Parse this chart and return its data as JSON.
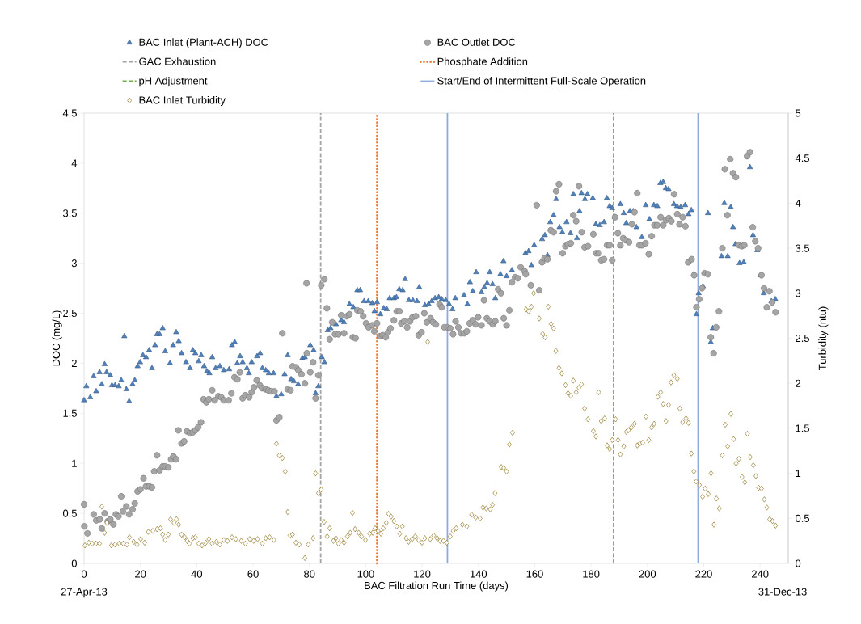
{
  "chart_data": {
    "type": "scatter",
    "xlabel": "BAC Filtration Run Time (days)",
    "ylabel": "DOC (mg/L)",
    "y2label": "Turbidity (ntu)",
    "xlim": [
      0,
      250
    ],
    "xticks": [
      0,
      20,
      40,
      60,
      80,
      100,
      120,
      140,
      160,
      180,
      200,
      220,
      240
    ],
    "ylim": [
      0,
      4.5
    ],
    "yticks": [
      0,
      0.5,
      1,
      1.5,
      2,
      2.5,
      3,
      3.5,
      4,
      4.5
    ],
    "y2lim": [
      0,
      5
    ],
    "y2ticks": [
      0,
      0.5,
      1,
      1.5,
      2,
      2.5,
      3,
      3.5,
      4,
      4.5,
      5
    ],
    "legend": "top",
    "annotations": [
      "27-Apr-13",
      "31-Dec-13"
    ],
    "ref_lines": [
      {
        "axis": "x",
        "value": 84,
        "label": "GAC Exhaustion",
        "color": "#a5a5a5",
        "line_style": "dashed"
      },
      {
        "axis": "x",
        "value": 104,
        "label": "Phosphate Addition",
        "color": "#ed7d31",
        "line_style": "dotted"
      },
      {
        "axis": "x",
        "value": 188,
        "label": "pH Adjustment",
        "color": "#70ad47",
        "line_style": "dashed"
      },
      {
        "axis": "x",
        "value": 129,
        "label": "Start/End of Intermittent Full-Scale Operation",
        "color": "#8faadc",
        "line_style": "solid"
      },
      {
        "axis": "x",
        "value": 218,
        "color": "#8faadc",
        "line_style": "solid"
      }
    ],
    "series": [
      {
        "name": "BAC Inlet (Plant-ACH) DOC",
        "color": "#4f81bd",
        "marker": "triangle",
        "x": [
          0,
          0.8,
          2.2,
          3.4,
          4.3,
          5.5,
          6.3,
          7.3,
          8,
          9.3,
          9.9,
          11,
          12.3,
          13.2,
          14.3,
          15,
          16,
          17.2,
          18,
          19,
          19.9,
          20.9,
          22,
          23.1,
          24.1,
          25.2,
          25.9,
          26.8,
          27.9,
          28.8,
          30.5,
          31.6,
          32.7,
          33.6,
          34.6,
          36.2,
          37.6,
          38.6,
          39.5,
          40.7,
          41.6,
          42.6,
          43.6,
          44.5,
          45.5,
          46.7,
          48.2,
          49.6,
          51.5,
          52.5,
          53.5,
          54.4,
          55.4,
          56.3,
          57.8,
          58.5,
          59.5,
          61.4,
          62.5,
          63.3,
          64.5,
          65.6,
          67.3,
          68.3,
          70,
          71.2,
          72.3,
          73.5,
          74.5,
          76,
          77.5,
          78.4,
          80.3,
          81.5,
          82.2,
          83.2,
          84.4,
          85.3,
          86.5,
          87.5,
          89.4,
          91.3,
          92.3,
          94.2,
          95.6,
          97,
          98,
          99.4,
          100.9,
          102.3,
          103.1,
          104,
          105.2,
          106.4,
          107.5,
          108.5,
          110,
          110.9,
          111.9,
          113.1,
          114,
          115.3,
          116.7,
          118.2,
          119,
          121,
          122.3,
          123.4,
          124.6,
          125.9,
          127,
          128.4,
          129.6,
          130.8,
          131.8,
          134.9,
          136.1,
          137,
          138,
          139.2,
          141.1,
          142.1,
          143.1,
          144,
          145,
          146,
          147.8,
          148.9,
          150,
          151.9,
          156.7,
          157.8,
          158.8,
          159.8,
          162.6,
          163.6,
          164.5,
          165.5,
          166.7,
          167.6,
          168.8,
          169.8,
          171.3,
          172.7,
          173.7,
          175,
          175.9,
          176.6,
          177.8,
          178.7,
          180.6,
          181.7,
          183.1,
          184.6,
          185.6,
          186.6,
          187.5,
          188.5,
          190.4,
          191.6,
          192.5,
          193.8,
          195,
          196.1,
          198,
          199.4,
          200.7,
          202.3,
          203.5,
          204.6,
          205.6,
          206.5,
          207.5,
          209.4,
          210.5,
          211.8,
          213.4,
          214.6,
          215.6,
          216.5,
          217.4,
          218.2,
          219.7,
          221.5,
          222.5,
          223.2,
          226.3,
          227.3,
          228.5,
          229.6,
          230.4,
          231.3,
          232.7,
          234.2,
          236.4,
          237.5,
          239,
          240.2,
          241.3,
          244,
          245.4
        ],
        "values": [
          1.63,
          1.77,
          1.66,
          1.87,
          1.72,
          1.91,
          1.79,
          1.99,
          1.91,
          1.88,
          1.78,
          1.78,
          1.77,
          1.83,
          2.27,
          1.74,
          1.62,
          1.79,
          1.83,
          1.97,
          2.01,
          2.08,
          2.06,
          2.13,
          1.95,
          2.18,
          2.29,
          2.29,
          2.35,
          2.12,
          2.0,
          2.18,
          2.31,
          2.22,
          2.1,
          2.01,
          1.95,
          2.13,
          2.1,
          2.02,
          2.08,
          1.97,
          1.92,
          1.9,
          2.06,
          1.95,
          1.97,
          1.93,
          1.94,
          2.18,
          2.21,
          2.0,
          2.07,
          2.01,
          1.95,
          1.9,
          2.01,
          2.07,
          2.1,
          1.95,
          1.93,
          1.9,
          1.9,
          1.67,
          1.69,
          1.89,
          2.08,
          1.84,
          1.82,
          1.79,
          2.05,
          2.06,
          2.18,
          2.13,
          1.7,
          1.77,
          2.06,
          2.01,
          2.33,
          2.35,
          2.39,
          2.43,
          2.41,
          2.59,
          2.56,
          2.73,
          2.73,
          2.62,
          2.62,
          2.6,
          2.52,
          2.61,
          2.49,
          2.55,
          2.54,
          2.65,
          2.65,
          2.66,
          2.74,
          2.73,
          2.84,
          2.63,
          2.63,
          2.62,
          2.76,
          2.58,
          2.59,
          2.62,
          2.65,
          2.66,
          2.64,
          2.63,
          2.59,
          2.54,
          2.65,
          2.68,
          2.59,
          2.81,
          2.72,
          2.91,
          2.71,
          2.76,
          2.8,
          2.91,
          2.79,
          2.65,
          2.89,
          3.02,
          2.87,
          2.93,
          3.1,
          3.12,
          2.98,
          3.18,
          3.24,
          3.28,
          3.08,
          3.41,
          3.48,
          3.64,
          3.36,
          3.31,
          3.41,
          3.3,
          3.69,
          3.25,
          3.52,
          3.7,
          3.64,
          3.69,
          3.65,
          3.39,
          3.38,
          3.41,
          3.65,
          3.57,
          3.55,
          3.46,
          3.59,
          3.5,
          3.4,
          3.52,
          3.52,
          3.36,
          3.26,
          3.58,
          3.44,
          3.58,
          3.57,
          3.8,
          3.81,
          3.75,
          3.74,
          3.59,
          3.57,
          3.56,
          3.58,
          3.49,
          3.53,
          2.89,
          2.49,
          2.7,
          2.77,
          3.5,
          2.21,
          2.35,
          3.07,
          3.6,
          3.07,
          3.56,
          3.36,
          3.19,
          3.0,
          3.01,
          3.96,
          3.28,
          3.13,
          2.88,
          2.7,
          2.62,
          2.64
        ]
      },
      {
        "name": "BAC Outlet DOC",
        "color": "#a5a5a5",
        "marker": "circle",
        "x": [
          0,
          0.1,
          1.2,
          3.4,
          4.3,
          5.6,
          6.3,
          7.3,
          8.4,
          9.3,
          10.4,
          11.3,
          12.2,
          13.2,
          13.8,
          15,
          16,
          17.2,
          18,
          19,
          20,
          21.1,
          22,
          23.1,
          24.1,
          24.9,
          25.9,
          26.8,
          27.9,
          28.8,
          29.9,
          30.9,
          31.7,
          32.7,
          33.5,
          34.6,
          35.5,
          36.5,
          37.6,
          38.6,
          39.5,
          40.5,
          41.5,
          42.4,
          43.4,
          44.3,
          45.5,
          46.4,
          47.7,
          48.7,
          49.6,
          51.3,
          52.3,
          53.4,
          54.4,
          55.3,
          56.3,
          57.3,
          58.6,
          59.5,
          60.3,
          61.3,
          62.4,
          63.3,
          64.5,
          65.4,
          66.4,
          67.6,
          68.3,
          69.3,
          70.4,
          72.3,
          73.3,
          74,
          75.2,
          76.1,
          77.2,
          78.4,
          79,
          79.1,
          80.3,
          81.3,
          82.2,
          83.2,
          84.2,
          85.3,
          86.2,
          87.2,
          88.1,
          89.1,
          90.3,
          91.3,
          92.3,
          93.3,
          94.2,
          95.4,
          96.4,
          97,
          98.2,
          99.1,
          100.1,
          101,
          102.3,
          103,
          104,
          105,
          106,
          107.1,
          107.9,
          108.8,
          110,
          111,
          112,
          112.6,
          113.7,
          114.7,
          115.7,
          116.6,
          117.8,
          118.8,
          119.8,
          120.8,
          121.7,
          123,
          123.9,
          124.9,
          126.2,
          127,
          127.9,
          129.1,
          130,
          131,
          131.9,
          132.9,
          133.8,
          135,
          135.9,
          136.9,
          138,
          139,
          139.9,
          141.1,
          142,
          143,
          144,
          145.1,
          146,
          147,
          148,
          149,
          150,
          151,
          151.9,
          153,
          154,
          155,
          156.4,
          156.8,
          158.6,
          160.7,
          161.6,
          162.6,
          163.5,
          164.5,
          165.7,
          166.7,
          167.6,
          168.6,
          169.9,
          170.9,
          171.8,
          172.8,
          173.7,
          174.7,
          175.7,
          176.7,
          177.7,
          178.9,
          180.8,
          181.8,
          182.7,
          183.6,
          184.6,
          185.7,
          186.6,
          187.5,
          188.5,
          189.5,
          190.4,
          191.4,
          192.3,
          193.5,
          194.5,
          195.4,
          196.4,
          197.2,
          198.1,
          199.3,
          200.5,
          201.5,
          202.5,
          203.5,
          204.7,
          205.6,
          206.6,
          207.6,
          208.5,
          209.5,
          210.6,
          211.4,
          212.5,
          213.5,
          214.5,
          215.7,
          216.6,
          217.4,
          218.4,
          219.4,
          220.3,
          221.5,
          222.5,
          223.5,
          224.4,
          225.4,
          226.6,
          227.5,
          228.4,
          229.4,
          230.4,
          231.4,
          232.5,
          233.5,
          234.4,
          235.4,
          236.4,
          237.4,
          238.3,
          239.3,
          240.5,
          241.4,
          242.4,
          243.3,
          244.3,
          245.5
        ],
        "values": [
          0.59,
          0.37,
          0.3,
          0.49,
          0.43,
          0.44,
          0.35,
          0.5,
          0.42,
          0.44,
          0.39,
          0.49,
          0.47,
          0.67,
          0.52,
          0.57,
          0.49,
          0.54,
          0.6,
          0.72,
          0.74,
          0.85,
          0.77,
          0.77,
          0.76,
          0.92,
          1.08,
          0.93,
          0.97,
          0.97,
          0.96,
          1.04,
          1.07,
          1.04,
          1.33,
          1.2,
          1.22,
          1.32,
          1.3,
          1.31,
          1.33,
          1.36,
          1.41,
          1.64,
          1.61,
          1.64,
          1.73,
          1.63,
          1.67,
          1.66,
          1.63,
          1.63,
          1.7,
          1.86,
          1.84,
          1.91,
          1.65,
          1.68,
          1.66,
          1.71,
          1.76,
          1.83,
          1.78,
          1.75,
          1.74,
          1.73,
          1.72,
          1.72,
          1.43,
          1.46,
          2.3,
          1.74,
          1.73,
          1.97,
          1.96,
          1.93,
          1.89,
          1.8,
          2.8,
          2.1,
          1.91,
          2.01,
          1.65,
          1.88,
          2.78,
          2.84,
          2.55,
          2.24,
          2.41,
          2.29,
          2.29,
          2.48,
          2.3,
          2.47,
          2.49,
          2.26,
          2.25,
          2.53,
          2.52,
          2.47,
          2.4,
          2.36,
          2.38,
          2.32,
          2.4,
          2.27,
          2.28,
          2.26,
          2.31,
          2.35,
          2.43,
          2.52,
          2.52,
          2.4,
          2.42,
          2.36,
          2.42,
          2.46,
          2.47,
          2.28,
          2.31,
          2.5,
          2.41,
          2.45,
          2.41,
          2.39,
          2.59,
          2.56,
          2.36,
          2.36,
          2.35,
          2.29,
          2.42,
          2.36,
          2.3,
          2.3,
          2.32,
          2.4,
          2.43,
          2.39,
          2.46,
          2.38,
          2.63,
          2.45,
          2.42,
          2.39,
          2.42,
          2.74,
          2.7,
          2.45,
          2.38,
          2.53,
          2.81,
          2.86,
          2.85,
          2.96,
          2.92,
          2.89,
          2.78,
          3.58,
          2.73,
          3.01,
          3.05,
          3.04,
          3.33,
          3.31,
          3.72,
          3.79,
          3.1,
          3.17,
          3.19,
          3.2,
          3.48,
          3.42,
          3.77,
          3.31,
          3.16,
          3.17,
          3.29,
          3.1,
          3.1,
          3.03,
          3.04,
          3.18,
          3.18,
          3.03,
          3.46,
          3.3,
          3.18,
          3.25,
          3.23,
          3.21,
          3.39,
          3.51,
          3.7,
          3.18,
          3.18,
          3.2,
          3.09,
          3.27,
          3.38,
          3.38,
          3.46,
          3.38,
          3.43,
          3.45,
          3.42,
          3.69,
          3.49,
          3.39,
          3.46,
          3.37,
          3.01,
          3.04,
          2.88,
          2.56,
          2.64,
          2.75,
          2.9,
          2.89,
          2.26,
          2.1,
          2.36,
          2.52,
          3.15,
          3.94,
          3.48,
          4.04,
          3.9,
          3.86,
          3.18,
          3.17,
          3.18,
          4.07,
          4.11,
          3.36,
          3.22,
          3.15,
          2.88,
          2.75,
          2.56,
          2.72,
          2.61,
          2.51
        ]
      },
      {
        "name": "BAC Inlet Turbidity",
        "color": "#7f6000",
        "marker": "diamond",
        "axis": "y2",
        "x": [
          0.3,
          1.7,
          2.9,
          4.2,
          5.5,
          6.3,
          7.3,
          8.1,
          9.7,
          11,
          12.5,
          13.9,
          15.2,
          16.1,
          17.6,
          18.8,
          20.1,
          21.5,
          22.8,
          24.4,
          25.9,
          27.1,
          27.9,
          28.8,
          29.9,
          30.7,
          31.9,
          32.8,
          33.6,
          34.6,
          35.7,
          36.6,
          37.4,
          38.6,
          39.5,
          40.7,
          41.9,
          43.2,
          44.3,
          45.5,
          47,
          48.2,
          49.6,
          50.9,
          52.5,
          53.9,
          55.8,
          57.3,
          58.8,
          60.2,
          61.6,
          63.3,
          64.5,
          65.9,
          67.4,
          68.3,
          69.3,
          70.4,
          71.4,
          72.3,
          73.1,
          74,
          75.2,
          76.4,
          78.4,
          79.6,
          81.3,
          82.2,
          83.2,
          84.2,
          85.2,
          86.3,
          87.2,
          88.5,
          89.4,
          90.3,
          91.3,
          92.3,
          93.5,
          94.5,
          95.3,
          96.2,
          97.5,
          98.5,
          99.9,
          101.4,
          102.5,
          103.3,
          104.4,
          105.4,
          106.2,
          107.3,
          108.1,
          109,
          110,
          111,
          112.1,
          113,
          114.3,
          115.2,
          116.5,
          117.6,
          118.8,
          120,
          121,
          122,
          122.9,
          124.1,
          125.3,
          126.4,
          127.6,
          128.8,
          130,
          131,
          132.1,
          134.3,
          135.9,
          137.6,
          139,
          140.6,
          141.6,
          142.8,
          144.2,
          145,
          145.9,
          148.1,
          149,
          150,
          151,
          152.1,
          156.9,
          157.8,
          158.8,
          159.6,
          161.6,
          162.8,
          163.7,
          164.8,
          165.8,
          166.7,
          167.5,
          168.6,
          169.6,
          170.9,
          171.8,
          172.8,
          173.7,
          174.7,
          175.7,
          176.6,
          177.7,
          178.9,
          180.8,
          181.7,
          182.7,
          183.6,
          184.8,
          185.7,
          186.6,
          187.5,
          188.7,
          189.6,
          190.4,
          191.6,
          192.5,
          193.3,
          194.3,
          195.4,
          196.4,
          197.3,
          198.3,
          199.5,
          200.5,
          201.5,
          202.4,
          203.7,
          204.7,
          205.6,
          206.6,
          207.5,
          208.4,
          209.4,
          210.6,
          211.5,
          212.5,
          213.7,
          214.6,
          215.6,
          216.5,
          217.3,
          218.5,
          219.6,
          220.5,
          221.6,
          222.6,
          223.6,
          224.5,
          225.5,
          226.6,
          227.6,
          228.5,
          229.6,
          230.6,
          231.5,
          232.5,
          233.6,
          234.6,
          235.5,
          236.5,
          237.6,
          238.5,
          239.5,
          240.5,
          241.5,
          242.4,
          243.4,
          244.4,
          245.5
        ],
        "values": [
          0.2,
          0.23,
          0.22,
          0.22,
          0.22,
          0.63,
          0.34,
          0.45,
          0.2,
          0.21,
          0.22,
          0.22,
          0.21,
          0.29,
          0.24,
          0.21,
          0.27,
          0.23,
          0.35,
          0.36,
          0.38,
          0.39,
          0.32,
          0.26,
          0.32,
          0.49,
          0.45,
          0.49,
          0.43,
          0.32,
          0.29,
          0.25,
          0.22,
          0.28,
          0.29,
          0.22,
          0.2,
          0.23,
          0.27,
          0.22,
          0.24,
          0.21,
          0.26,
          0.25,
          0.29,
          0.27,
          0.25,
          0.22,
          0.27,
          0.25,
          0.27,
          0.22,
          0.28,
          0.29,
          0.26,
          1.33,
          1.2,
          1.17,
          1.02,
          0.57,
          0.31,
          0.32,
          0.23,
          0.21,
          0.06,
          0.21,
          0.28,
          1.0,
          0.78,
          0.82,
          0.46,
          0.3,
          0.39,
          0.25,
          0.28,
          0.22,
          0.26,
          0.23,
          0.3,
          0.34,
          0.56,
          0.38,
          0.34,
          0.3,
          0.26,
          0.33,
          0.34,
          0.39,
          0.36,
          0.33,
          0.39,
          0.45,
          0.55,
          0.52,
          0.47,
          0.41,
          0.33,
          0.41,
          0.28,
          0.24,
          0.27,
          0.3,
          0.26,
          0.23,
          0.28,
          2.46,
          0.27,
          0.31,
          0.28,
          0.25,
          0.25,
          0.23,
          0.3,
          0.36,
          0.39,
          0.43,
          0.41,
          0.54,
          0.51,
          0.5,
          0.62,
          0.61,
          0.6,
          0.65,
          0.78,
          1.07,
          1.06,
          1.02,
          1.32,
          1.45,
          2.82,
          2.8,
          2.85,
          3.0,
          2.72,
          2.55,
          2.51,
          2.85,
          2.66,
          2.61,
          2.36,
          2.17,
          2.11,
          1.98,
          1.89,
          1.86,
          2.03,
          1.9,
          1.95,
          1.99,
          1.72,
          1.6,
          1.47,
          1.41,
          1.9,
          1.58,
          1.61,
          1.31,
          1.27,
          1.37,
          1.6,
          1.37,
          1.21,
          1.3,
          1.46,
          1.48,
          1.51,
          1.55,
          1.31,
          1.33,
          1.34,
          1.63,
          1.37,
          1.51,
          1.55,
          1.85,
          1.9,
          1.77,
          1.58,
          1.76,
          2.01,
          2.09,
          2.05,
          1.72,
          1.57,
          1.61,
          1.56,
          1.22,
          1.02,
          0.91,
          0.87,
          0.74,
          0.83,
          0.77,
          1.0,
          0.43,
          0.72,
          0.61,
          1.2,
          1.54,
          1.3,
          1.66,
          1.38,
          1.11,
          1.16,
          0.96,
          0.9,
          1.44,
          1.18,
          1.09,
          0.97,
          0.84,
          0.83,
          0.71,
          0.62,
          0.49,
          0.47,
          0.42
        ]
      }
    ]
  }
}
